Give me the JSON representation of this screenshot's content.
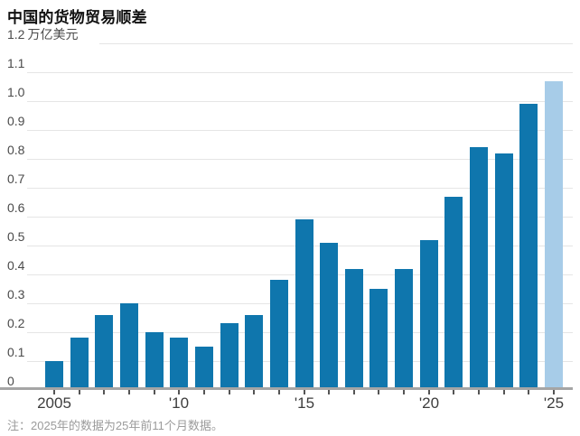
{
  "header": {
    "title": "中国的货物贸易顺差"
  },
  "footnote": {
    "text": "注：2025年的数据为25年前11个月数据。"
  },
  "chart_data": {
    "type": "bar",
    "title": "中国的货物贸易顺差",
    "unit_label": "万亿美元",
    "categories": [
      2005,
      2006,
      2007,
      2008,
      2009,
      2010,
      2011,
      2012,
      2013,
      2014,
      2015,
      2016,
      2017,
      2018,
      2019,
      2020,
      2021,
      2022,
      2023,
      2024,
      2025
    ],
    "values": [
      0.1,
      0.18,
      0.26,
      0.3,
      0.2,
      0.18,
      0.15,
      0.23,
      0.26,
      0.38,
      0.59,
      0.51,
      0.42,
      0.35,
      0.42,
      0.52,
      0.67,
      0.84,
      0.82,
      0.99,
      1.07
    ],
    "highlight_index": 20,
    "colors": {
      "bar": "#0f76ad",
      "bar_highlight": "#a7cce8",
      "gridline": "#e5e5e5",
      "axis": "#a5a5a5"
    },
    "ylim": [
      0,
      1.2
    ],
    "ytick_labels": [
      "0",
      "0.1",
      "0.2",
      "0.3",
      "0.4",
      "0.5",
      "0.6",
      "0.7",
      "0.8",
      "0.9",
      "1.0",
      "1.1",
      "1.2"
    ],
    "xtick_labels": [
      {
        "index": 0,
        "label": "2005"
      },
      {
        "index": 5,
        "label": "'10"
      },
      {
        "index": 10,
        "label": "'15"
      },
      {
        "index": 15,
        "label": "'20"
      },
      {
        "index": 20,
        "label": "'25"
      }
    ],
    "grid": true,
    "legend": "none",
    "note": "注：2025年的数据为25年前11个月数据。"
  }
}
